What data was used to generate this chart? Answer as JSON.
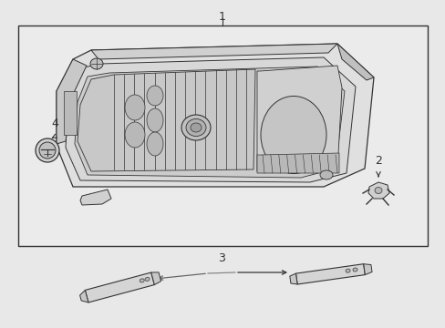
{
  "bg_color": "#e8e8e8",
  "box_bg": "#e8e8e8",
  "box_edge": "#333333",
  "line_color": "#333333",
  "label_color": "#111111",
  "arrow_color": "#555555",
  "label_1": "1",
  "label_2": "2",
  "label_3": "3",
  "label_4": "4",
  "fs_label": 9
}
